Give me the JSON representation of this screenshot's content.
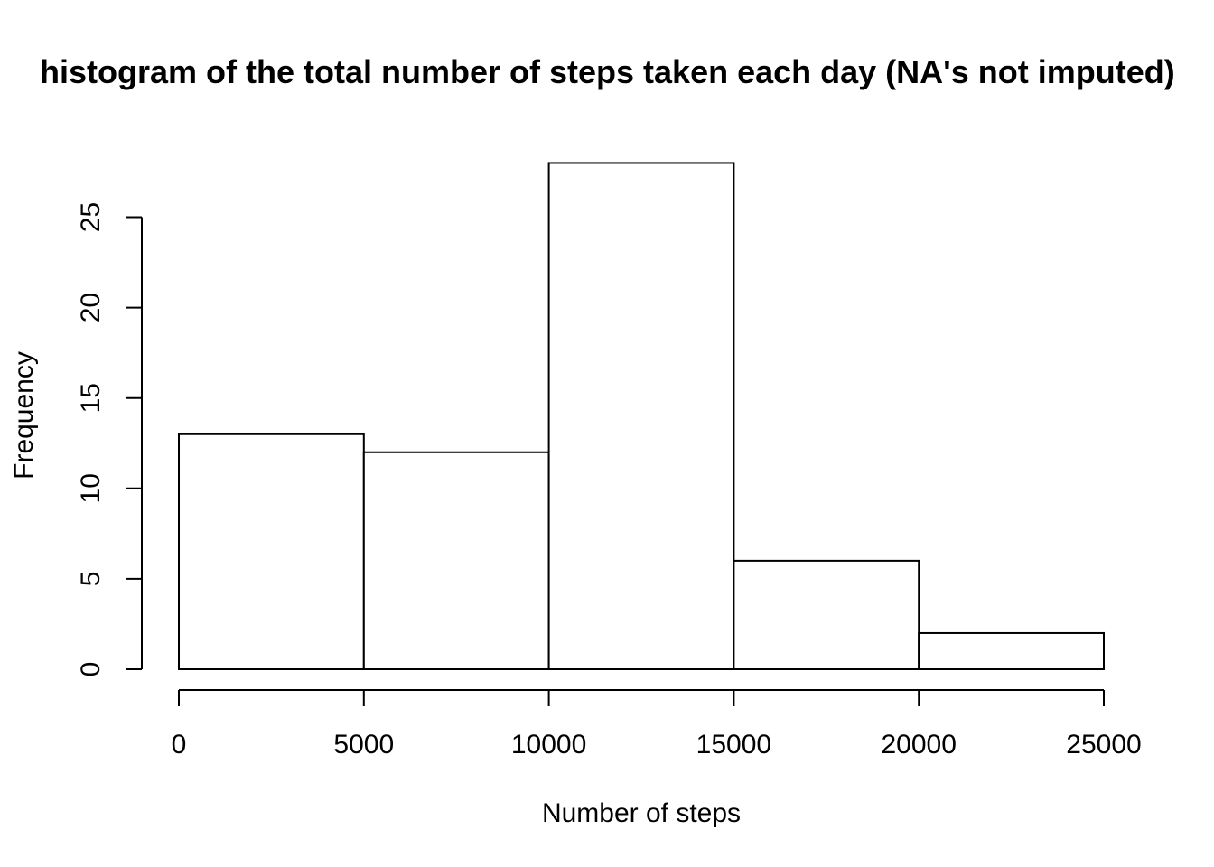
{
  "chart_data": {
    "type": "bar",
    "title": "histogram of the total number of steps taken each day (NA's not imputed)",
    "xlabel": "Number of steps",
    "ylabel": "Frequency",
    "bins": [
      {
        "from": 0,
        "to": 5000,
        "value": 13
      },
      {
        "from": 5000,
        "to": 10000,
        "value": 12
      },
      {
        "from": 10000,
        "to": 15000,
        "value": 28
      },
      {
        "from": 15000,
        "to": 20000,
        "value": 6
      },
      {
        "from": 20000,
        "to": 25000,
        "value": 2
      }
    ],
    "xlim": [
      0,
      25000
    ],
    "ylim": [
      0,
      28
    ],
    "x_ticks": [
      "0",
      "5000",
      "10000",
      "15000",
      "20000",
      "25000"
    ],
    "y_ticks": [
      "0",
      "5",
      "10",
      "15",
      "20",
      "25"
    ],
    "grid": false,
    "legend": "none"
  }
}
